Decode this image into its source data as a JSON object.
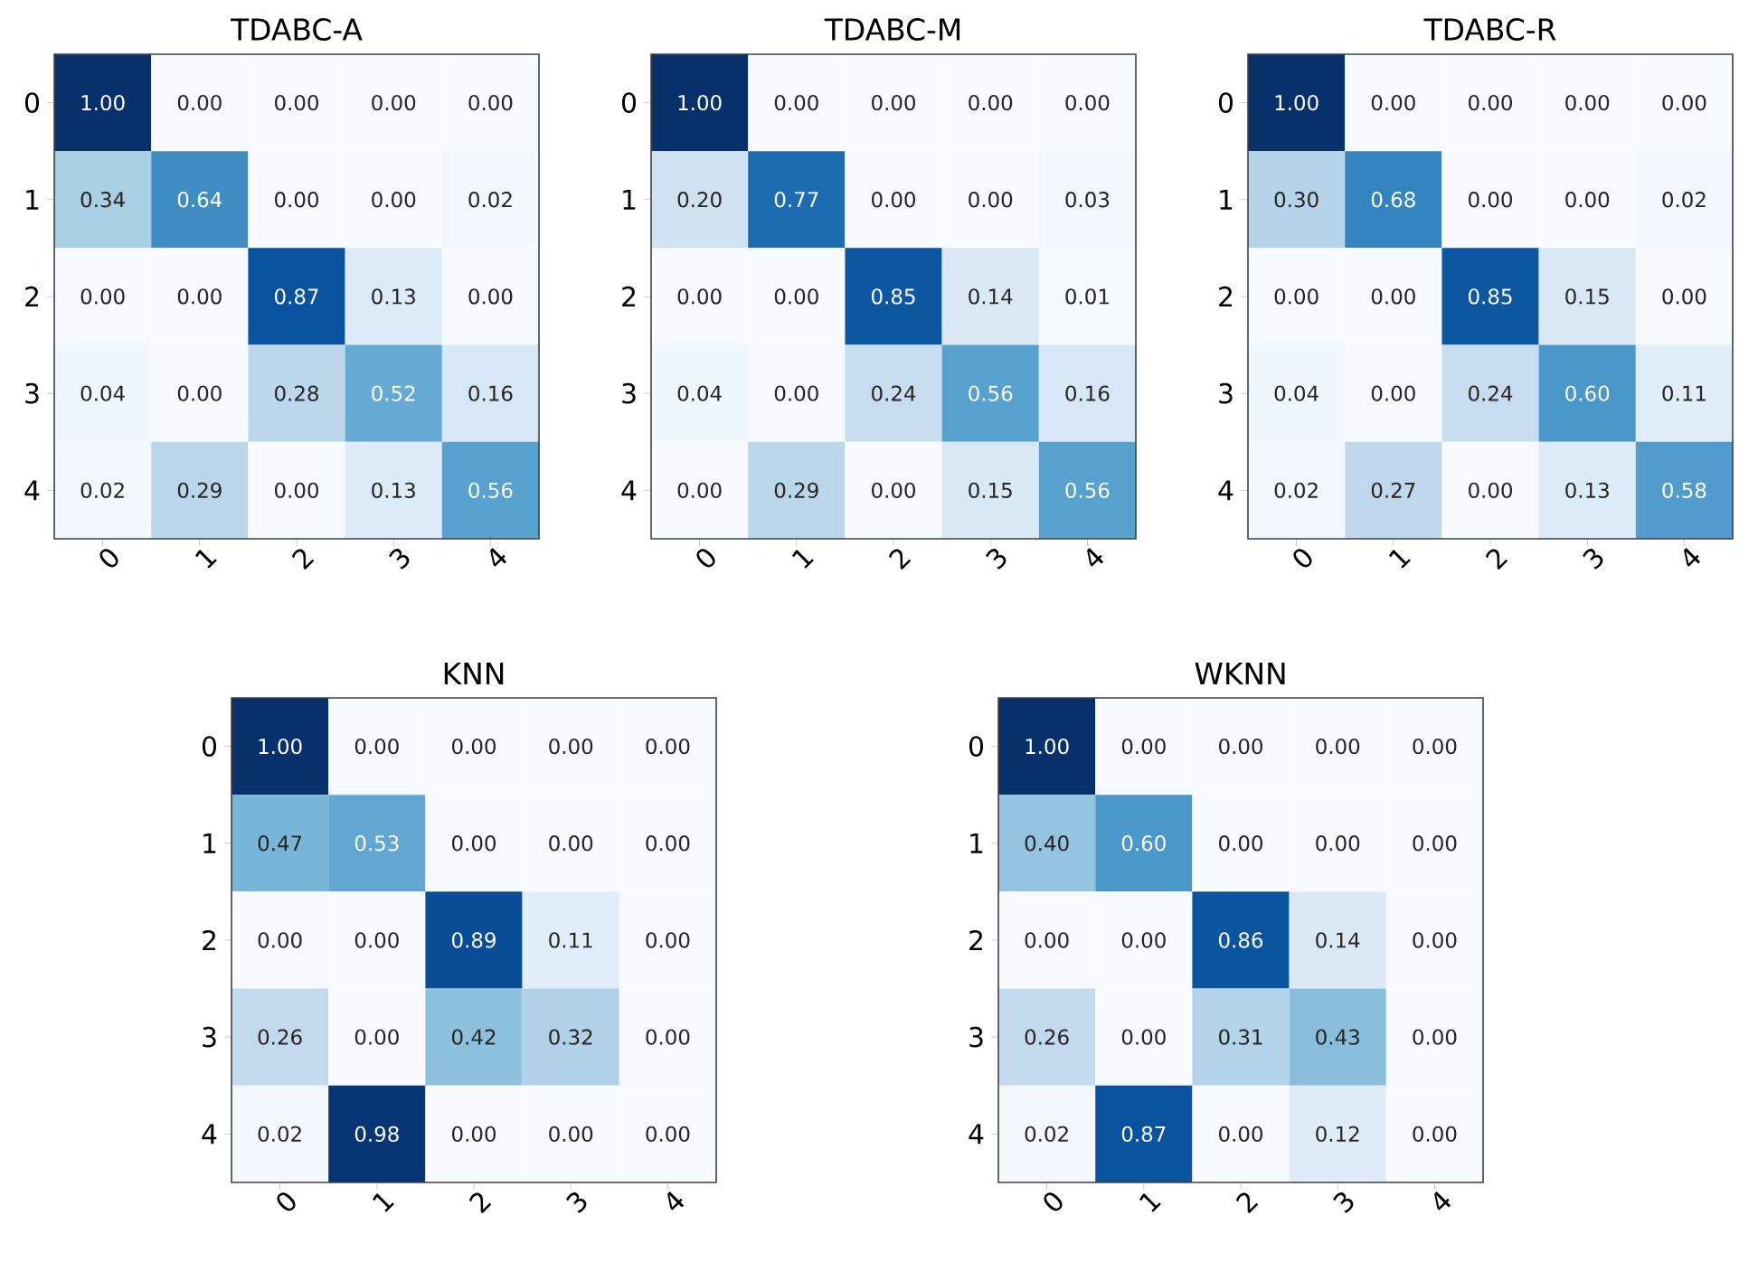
{
  "chart_data": [
    {
      "type": "heatmap",
      "title": "TDABC-A",
      "categories": [
        "0",
        "1",
        "2",
        "3",
        "4"
      ],
      "y_categories": [
        "0",
        "1",
        "2",
        "3",
        "4"
      ],
      "cells": [
        [
          1.0,
          0.0,
          0.0,
          0.0,
          0.0
        ],
        [
          0.34,
          0.64,
          0.0,
          0.0,
          0.02
        ],
        [
          0.0,
          0.0,
          0.87,
          0.13,
          0.0
        ],
        [
          0.04,
          0.0,
          0.28,
          0.52,
          0.16
        ],
        [
          0.02,
          0.29,
          0.0,
          0.13,
          0.56
        ]
      ],
      "cell_labels": [
        [
          "1.00",
          "0.00",
          "0.00",
          "0.00",
          "0.00"
        ],
        [
          "0.34",
          "0.64",
          "0.00",
          "0.00",
          "0.02"
        ],
        [
          "0.00",
          "0.00",
          "0.87",
          "0.13",
          "0.00"
        ],
        [
          "0.04",
          "0.00",
          "0.28",
          "0.52",
          "0.16"
        ],
        [
          "0.02",
          "0.29",
          "0.00",
          "0.13",
          "0.56"
        ]
      ]
    },
    {
      "type": "heatmap",
      "title": "TDABC-M",
      "categories": [
        "0",
        "1",
        "2",
        "3",
        "4"
      ],
      "y_categories": [
        "0",
        "1",
        "2",
        "3",
        "4"
      ],
      "cells": [
        [
          1.0,
          0.0,
          0.0,
          0.0,
          0.0
        ],
        [
          0.2,
          0.77,
          0.0,
          0.0,
          0.03
        ],
        [
          0.0,
          0.0,
          0.85,
          0.14,
          0.01
        ],
        [
          0.04,
          0.0,
          0.24,
          0.56,
          0.16
        ],
        [
          0.0,
          0.29,
          0.0,
          0.15,
          0.56
        ]
      ],
      "cell_labels": [
        [
          "1.00",
          "0.00",
          "0.00",
          "0.00",
          "0.00"
        ],
        [
          "0.20",
          "0.77",
          "0.00",
          "0.00",
          "0.03"
        ],
        [
          "0.00",
          "0.00",
          "0.85",
          "0.14",
          "0.01"
        ],
        [
          "0.04",
          "0.00",
          "0.24",
          "0.56",
          "0.16"
        ],
        [
          "0.00",
          "0.29",
          "0.00",
          "0.15",
          "0.56"
        ]
      ]
    },
    {
      "type": "heatmap",
      "title": "TDABC-R",
      "categories": [
        "0",
        "1",
        "2",
        "3",
        "4"
      ],
      "y_categories": [
        "0",
        "1",
        "2",
        "3",
        "4"
      ],
      "cells": [
        [
          1.0,
          0.0,
          0.0,
          0.0,
          0.0
        ],
        [
          0.3,
          0.68,
          0.0,
          0.0,
          0.02
        ],
        [
          0.0,
          0.0,
          0.85,
          0.15,
          0.0
        ],
        [
          0.04,
          0.0,
          0.24,
          0.6,
          0.11
        ],
        [
          0.02,
          0.27,
          0.0,
          0.13,
          0.58
        ]
      ],
      "cell_labels": [
        [
          "1.00",
          "0.00",
          "0.00",
          "0.00",
          "0.00"
        ],
        [
          "0.30",
          "0.68",
          "0.00",
          "0.00",
          "0.02"
        ],
        [
          "0.00",
          "0.00",
          "0.85",
          "0.15",
          "0.00"
        ],
        [
          "0.04",
          "0.00",
          "0.24",
          "0.60",
          "0.11"
        ],
        [
          "0.02",
          "0.27",
          "0.00",
          "0.13",
          "0.58"
        ]
      ]
    },
    {
      "type": "heatmap",
      "title": "KNN",
      "categories": [
        "0",
        "1",
        "2",
        "3",
        "4"
      ],
      "y_categories": [
        "0",
        "1",
        "2",
        "3",
        "4"
      ],
      "cells": [
        [
          1.0,
          0.0,
          0.0,
          0.0,
          0.0
        ],
        [
          0.47,
          0.53,
          0.0,
          0.0,
          0.0
        ],
        [
          0.0,
          0.0,
          0.89,
          0.11,
          0.0
        ],
        [
          0.26,
          0.0,
          0.42,
          0.32,
          0.0
        ],
        [
          0.02,
          0.98,
          0.0,
          0.0,
          0.0
        ]
      ],
      "cell_labels": [
        [
          "1.00",
          "0.00",
          "0.00",
          "0.00",
          "0.00"
        ],
        [
          "0.47",
          "0.53",
          "0.00",
          "0.00",
          "0.00"
        ],
        [
          "0.00",
          "0.00",
          "0.89",
          "0.11",
          "0.00"
        ],
        [
          "0.26",
          "0.00",
          "0.42",
          "0.32",
          "0.00"
        ],
        [
          "0.02",
          "0.98",
          "0.00",
          "0.00",
          "0.00"
        ]
      ]
    },
    {
      "type": "heatmap",
      "title": "WKNN",
      "categories": [
        "0",
        "1",
        "2",
        "3",
        "4"
      ],
      "y_categories": [
        "0",
        "1",
        "2",
        "3",
        "4"
      ],
      "cells": [
        [
          1.0,
          0.0,
          0.0,
          0.0,
          0.0
        ],
        [
          0.4,
          0.6,
          0.0,
          0.0,
          0.0
        ],
        [
          0.0,
          0.0,
          0.86,
          0.14,
          0.0
        ],
        [
          0.26,
          0.0,
          0.31,
          0.43,
          0.0
        ],
        [
          0.02,
          0.87,
          0.0,
          0.12,
          0.0
        ]
      ],
      "cell_labels": [
        [
          "1.00",
          "0.00",
          "0.00",
          "0.00",
          "0.00"
        ],
        [
          "0.40",
          "0.60",
          "0.00",
          "0.00",
          "0.00"
        ],
        [
          "0.00",
          "0.00",
          "0.86",
          "0.14",
          "0.00"
        ],
        [
          "0.26",
          "0.00",
          "0.31",
          "0.43",
          "0.00"
        ],
        [
          "0.02",
          "0.87",
          "0.00",
          "0.12",
          "0.00"
        ]
      ]
    }
  ]
}
